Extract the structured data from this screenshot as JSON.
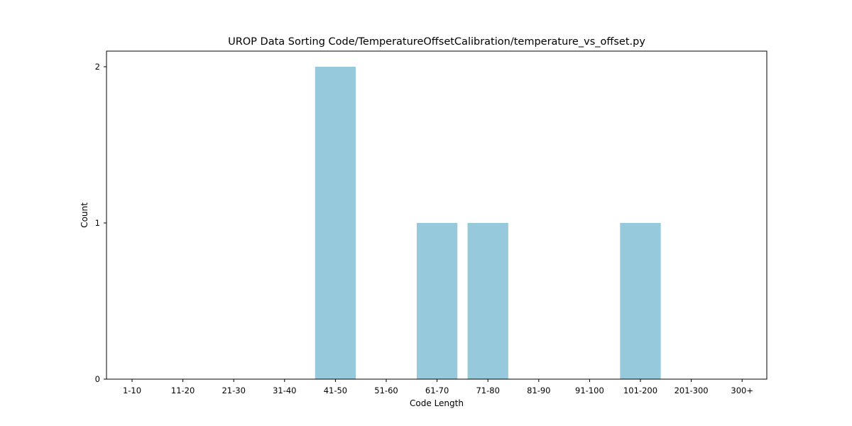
{
  "chart_data": {
    "type": "bar",
    "title": "UROP Data Sorting Code/TemperatureOffsetCalibration/temperature_vs_offset.py",
    "xlabel": "Code Length",
    "ylabel": "Count",
    "categories": [
      "1-10",
      "11-20",
      "21-30",
      "31-40",
      "41-50",
      "51-60",
      "61-70",
      "71-80",
      "81-90",
      "91-100",
      "101-200",
      "201-300",
      "300+"
    ],
    "values": [
      0,
      0,
      0,
      0,
      2,
      0,
      1,
      1,
      0,
      0,
      1,
      0,
      0
    ],
    "yticks": [
      "0",
      "1",
      "2"
    ],
    "ylim": [
      0,
      2.1
    ],
    "grid": false,
    "bar_color": "#96c9dc"
  }
}
